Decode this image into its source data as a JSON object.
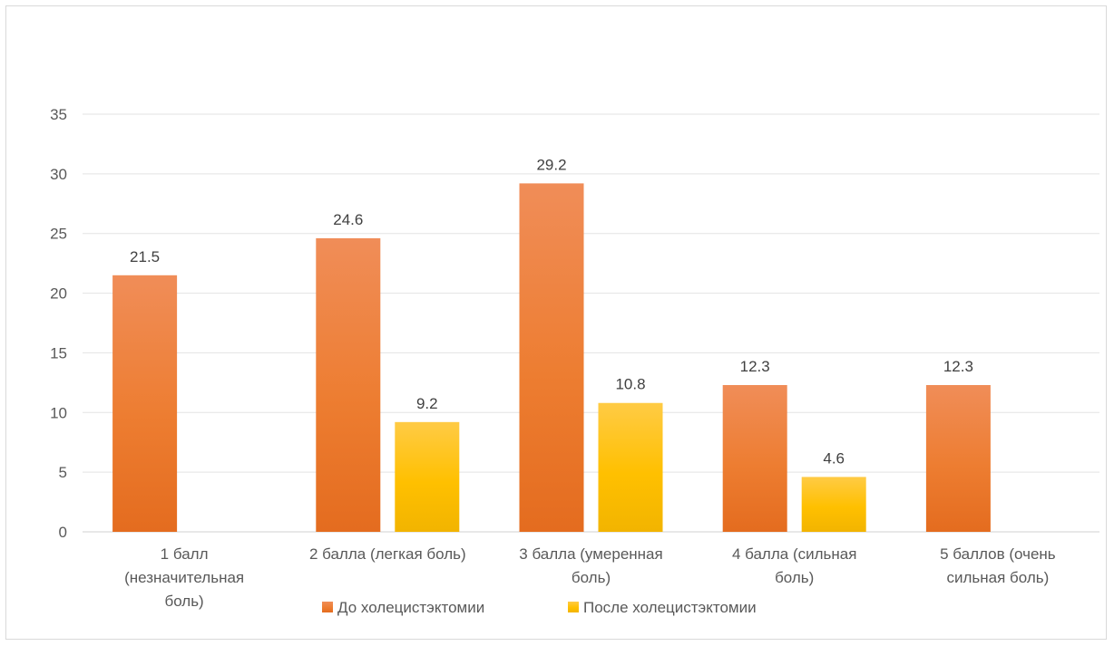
{
  "chart_data": {
    "type": "bar",
    "categories": [
      [
        "1 балл",
        "(незначительная",
        "боль)"
      ],
      [
        "2 балла (легкая боль)"
      ],
      [
        "3 балла (умеренная",
        "боль)"
      ],
      [
        "4 балла (сильная",
        "боль)"
      ],
      [
        "5 баллов (очень",
        "сильная боль)"
      ]
    ],
    "series": [
      {
        "name": "До холецистэктомии",
        "values": [
          21.5,
          24.6,
          29.2,
          12.3,
          12.3
        ],
        "color": "#ed7d31",
        "color_light": "#f08d58",
        "color_dark": "#e46c1f"
      },
      {
        "name": "После холецистэктомии",
        "values": [
          null,
          9.2,
          10.8,
          4.6,
          null
        ],
        "color": "#ffc000",
        "color_light": "#ffcb45",
        "color_dark": "#f2b400"
      }
    ],
    "y_ticks": [
      0,
      5,
      10,
      15,
      20,
      25,
      30,
      35
    ],
    "ylim": [
      0,
      35
    ],
    "grid": true,
    "legend_position": "bottom"
  }
}
